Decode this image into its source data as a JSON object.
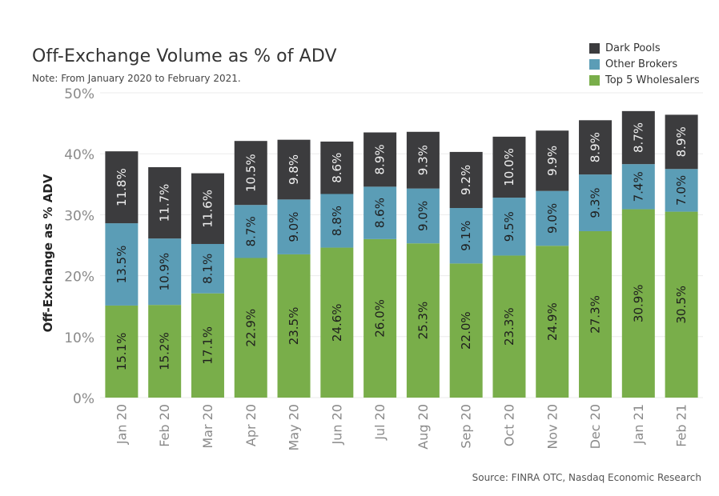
{
  "chart_data": {
    "type": "bar",
    "stacked": true,
    "title": "Off-Exchange Volume as % of ADV",
    "subtitle": "Note: From January 2020 to February 2021.",
    "source": "Source: FINRA OTC, Nasdaq Economic Research",
    "xlabel": "",
    "ylabel": "Off-Exchange as % ADV",
    "ylim": [
      0,
      50
    ],
    "yticks": [
      "0%",
      "10%",
      "20%",
      "30%",
      "40%",
      "50%"
    ],
    "grid": true,
    "legend_position": "top-right",
    "categories": [
      "Jan 20",
      "Feb 20",
      "Mar 20",
      "Apr 20",
      "May 20",
      "Jun 20",
      "Jul 20",
      "Aug 20",
      "Sep 20",
      "Oct 20",
      "Nov 20",
      "Dec 20",
      "Jan 21",
      "Feb 21"
    ],
    "series": [
      {
        "name": "Top 5 Wholesalers",
        "color": "#79ae4a",
        "values": [
          15.1,
          15.2,
          17.1,
          22.9,
          23.5,
          24.6,
          26.0,
          25.3,
          22.0,
          23.3,
          24.9,
          27.3,
          30.9,
          30.5
        ],
        "labels": [
          "15.1%",
          "15.2%",
          "17.1%",
          "22.9%",
          "23.5%",
          "24.6%",
          "26.0%",
          "25.3%",
          "22.0%",
          "23.3%",
          "24.9%",
          "27.3%",
          "30.9%",
          "30.5%"
        ]
      },
      {
        "name": "Other Brokers",
        "color": "#5b9db6",
        "values": [
          13.5,
          10.9,
          8.1,
          8.7,
          9.0,
          8.8,
          8.6,
          9.0,
          9.1,
          9.5,
          9.0,
          9.3,
          7.4,
          7.0
        ],
        "labels": [
          "13.5%",
          "10.9%",
          "8.1%",
          "8.7%",
          "9.0%",
          "8.8%",
          "8.6%",
          "9.0%",
          "9.1%",
          "9.5%",
          "9.0%",
          "9.3%",
          "7.4%",
          "7.0%"
        ]
      },
      {
        "name": "Dark Pools",
        "color": "#3c3c3e",
        "values": [
          11.8,
          11.7,
          11.6,
          10.5,
          9.8,
          8.6,
          8.9,
          9.3,
          9.2,
          10.0,
          9.9,
          8.9,
          8.7,
          8.9
        ],
        "labels": [
          "11.8%",
          "11.7%",
          "11.6%",
          "10.5%",
          "9.8%",
          "8.6%",
          "8.9%",
          "9.3%",
          "9.2%",
          "10.0%",
          "9.9%",
          "8.9%",
          "8.7%",
          "8.9%"
        ]
      }
    ],
    "legend_order": [
      "Dark Pools",
      "Other Brokers",
      "Top 5 Wholesalers"
    ]
  }
}
